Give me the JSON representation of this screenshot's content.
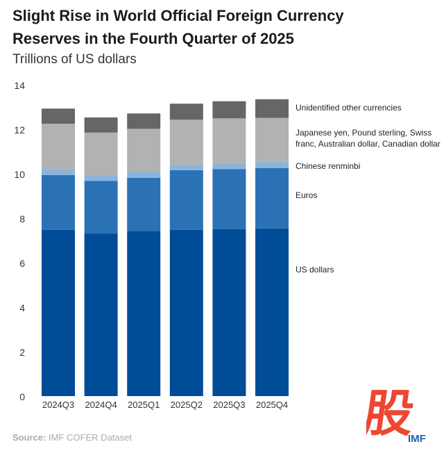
{
  "title": "Slight Rise in World Official Foreign Currency Reserves in the Fourth Quarter of 2025",
  "subtitle": "Trillions of US dollars",
  "source_label": "Source:",
  "source_text": "IMF COFER Dataset",
  "watermark": "股 IMF",
  "chart_data": {
    "type": "bar",
    "stacked": true,
    "title": "Slight Rise in World Official Foreign Currency Reserves in the Fourth Quarter of 2025",
    "ylabel": "Trillions of US dollars",
    "ylim": [
      0,
      14
    ],
    "yticks": [
      0,
      2,
      4,
      6,
      8,
      10,
      12,
      14
    ],
    "grid": false,
    "legend": "right",
    "categories": [
      "2024Q3",
      "2024Q4",
      "2025Q1",
      "2025Q2",
      "2025Q3",
      "2025Q4"
    ],
    "series": [
      {
        "name": "US dollars",
        "color": "#004c97",
        "values": [
          7.48,
          7.31,
          7.42,
          7.48,
          7.51,
          7.54
        ]
      },
      {
        "name": "Euros",
        "color": "#2a72b5",
        "values": [
          2.46,
          2.37,
          2.4,
          2.68,
          2.7,
          2.71
        ]
      },
      {
        "name": "Chinese renminbi",
        "color": "#8ab4dc",
        "values": [
          0.27,
          0.26,
          0.26,
          0.25,
          0.25,
          0.27
        ]
      },
      {
        "name": "Japanese yen, Pound sterling, Swiss franc, Australian dollar, Canadian dollar",
        "color": "#b1b2b1",
        "values": [
          2.04,
          1.91,
          1.94,
          2.02,
          2.03,
          1.99
        ]
      },
      {
        "name": "Unidentified other currencies",
        "color": "#666666",
        "values": [
          0.68,
          0.68,
          0.69,
          0.72,
          0.77,
          0.84
        ]
      }
    ]
  }
}
